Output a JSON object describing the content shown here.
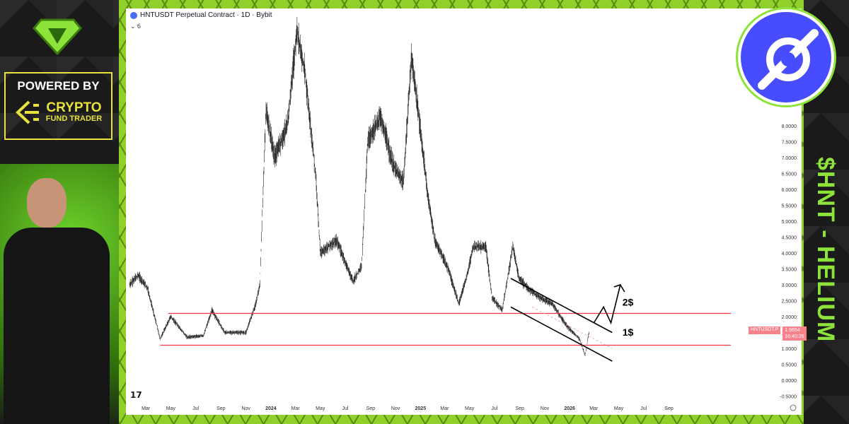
{
  "sidebar": {
    "powered_by": "POWERED BY",
    "brand_line1": "CRYPTO",
    "brand_line2": "FUND TRADER"
  },
  "banner": {
    "title": "$HNT - HELIUM",
    "accent": "#8ee33a",
    "logo_icon": "helium-logo-icon"
  },
  "chart": {
    "title": "HNTUSDT Perpetual Contract · 1D · Bybit",
    "indicator_count": "6",
    "price_tag": {
      "symbol": "HNTUSDT.P",
      "price": "1.5654",
      "countdown": "16:40:26",
      "color": "#f7525f"
    },
    "watermark": "TV"
  },
  "chart_data": {
    "type": "candlestick",
    "y_ticks": [
      "8.0000",
      "7.5000",
      "7.0000",
      "6.5000",
      "6.0000",
      "5.5000",
      "5.0000",
      "4.5000",
      "4.0000",
      "3.5000",
      "3.0000",
      "2.5000",
      "2.0000",
      "1.5000",
      "1.0000",
      "0.5000",
      "0.0000",
      "-0.5000"
    ],
    "x_ticks": [
      "Mar",
      "May",
      "Jul",
      "Sep",
      "Nov",
      "2024",
      "Mar",
      "May",
      "Jul",
      "Sep",
      "Nov",
      "2025",
      "Mar",
      "May",
      "Jul",
      "Sep",
      "Nov",
      "2026",
      "Mar",
      "May",
      "Jul",
      "Sep"
    ],
    "ylim": [
      -0.6,
      11.5
    ],
    "xlim": [
      "2023-01-20",
      "2026-10-20"
    ],
    "price_path": [
      [
        "2023-01-20",
        3.0
      ],
      [
        "2023-02-10",
        3.3
      ],
      [
        "2023-03-05",
        2.9
      ],
      [
        "2023-04-05",
        1.3
      ],
      [
        "2023-05-01",
        2.0
      ],
      [
        "2023-06-10",
        1.35
      ],
      [
        "2023-07-20",
        1.4
      ],
      [
        "2023-08-10",
        2.2
      ],
      [
        "2023-09-10",
        1.5
      ],
      [
        "2023-11-01",
        1.5
      ],
      [
        "2023-11-25",
        2.4
      ],
      [
        "2023-12-05",
        3.0
      ],
      [
        "2023-12-20",
        8.5
      ],
      [
        "2024-01-10",
        7.0
      ],
      [
        "2024-02-10",
        8.0
      ],
      [
        "2024-03-05",
        11.0
      ],
      [
        "2024-03-25",
        9.6
      ],
      [
        "2024-04-20",
        6.4
      ],
      [
        "2024-05-01",
        4.0
      ],
      [
        "2024-06-10",
        4.4
      ],
      [
        "2024-07-20",
        3.1
      ],
      [
        "2024-08-10",
        3.6
      ],
      [
        "2024-08-25",
        7.5
      ],
      [
        "2024-09-25",
        8.3
      ],
      [
        "2024-10-25",
        6.8
      ],
      [
        "2024-11-20",
        6.2
      ],
      [
        "2024-12-10",
        10.2
      ],
      [
        "2024-12-25",
        8.6
      ],
      [
        "2025-01-20",
        5.7
      ],
      [
        "2025-02-05",
        4.4
      ],
      [
        "2025-03-10",
        3.5
      ],
      [
        "2025-04-05",
        2.4
      ],
      [
        "2025-04-25",
        3.3
      ],
      [
        "2025-05-10",
        4.2
      ],
      [
        "2025-06-10",
        4.2
      ],
      [
        "2025-06-25",
        2.6
      ],
      [
        "2025-07-20",
        2.2
      ],
      [
        "2025-08-15",
        4.2
      ],
      [
        "2025-08-30",
        3.2
      ],
      [
        "2025-09-20",
        2.9
      ],
      [
        "2025-10-20",
        2.6
      ],
      [
        "2025-11-20",
        2.4
      ],
      [
        "2025-12-25",
        1.7
      ],
      [
        "2026-01-25",
        1.3
      ],
      [
        "2026-02-08",
        0.78
      ],
      [
        "2026-02-18",
        1.5654
      ]
    ],
    "horizontal_levels": [
      {
        "price": 2.1,
        "from": "2023-04-25",
        "color": "#f23645"
      },
      {
        "price": 1.1,
        "from": "2023-04-05",
        "color": "#f23645"
      }
    ],
    "channel": {
      "upper": [
        [
          "2025-08-10",
          3.2
        ],
        [
          "2026-04-15",
          1.5
        ]
      ],
      "lower": [
        [
          "2025-08-10",
          2.3
        ],
        [
          "2026-04-15",
          0.6
        ]
      ]
    },
    "projection_arrow": [
      [
        "2026-03-01",
        1.8
      ],
      [
        "2026-03-25",
        2.3
      ],
      [
        "2026-04-12",
        1.8
      ],
      [
        "2026-05-05",
        3.0
      ]
    ],
    "annotations": [
      {
        "text": "2$",
        "date": "2026-05-10",
        "price": 2.35
      },
      {
        "text": "1$",
        "date": "2026-05-10",
        "price": 1.4
      }
    ]
  }
}
